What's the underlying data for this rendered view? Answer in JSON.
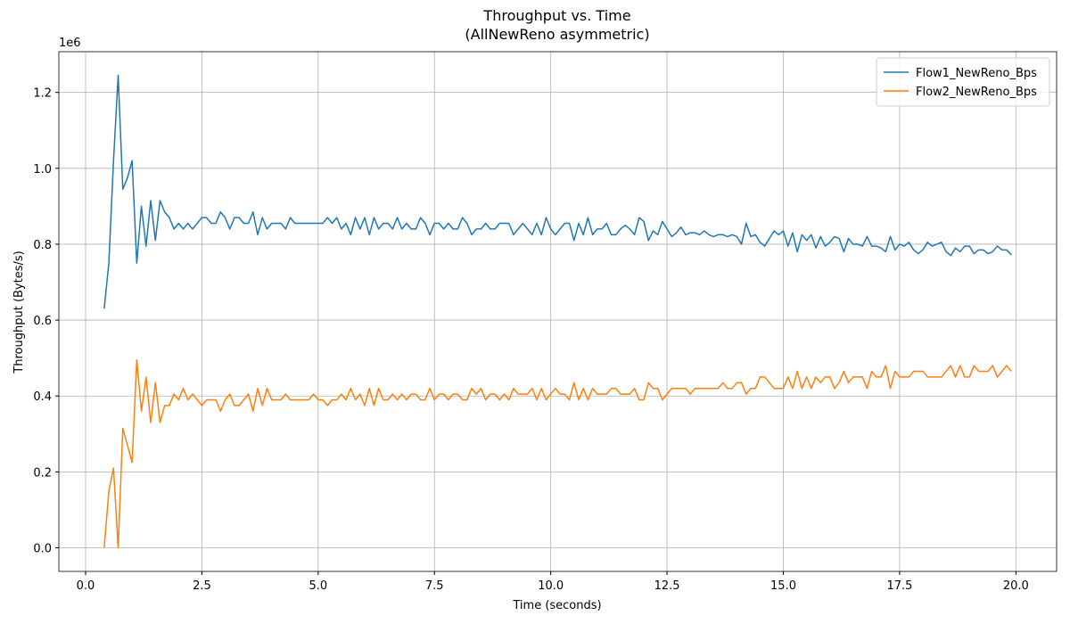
{
  "chart_data": {
    "type": "line",
    "title": "Throughput vs. Time",
    "subtitle": "(AllNewReno asymmetric)",
    "x_label": "Time (seconds)",
    "y_label": "Throughput (Bytes/s)",
    "y_offset_label": "1e6",
    "x": [
      0.4,
      0.5,
      0.6,
      0.7,
      0.8,
      0.9,
      1.0,
      1.1,
      1.2,
      1.3,
      1.4,
      1.5,
      1.6,
      1.7,
      1.8,
      1.9,
      2.0,
      2.1,
      2.2,
      2.3,
      2.4,
      2.5,
      2.6,
      2.7,
      2.8,
      2.9,
      3.0,
      3.1,
      3.2,
      3.3,
      3.4,
      3.5,
      3.6,
      3.7,
      3.8,
      3.9,
      4.0,
      4.1,
      4.2,
      4.3,
      4.4,
      4.5,
      4.6,
      4.7,
      4.8,
      4.9,
      5.0,
      5.1,
      5.2,
      5.3,
      5.4,
      5.5,
      5.6,
      5.7,
      5.8,
      5.9,
      6.0,
      6.1,
      6.2,
      6.3,
      6.4,
      6.5,
      6.6,
      6.7,
      6.8,
      6.9,
      7.0,
      7.1,
      7.2,
      7.3,
      7.4,
      7.5,
      7.6,
      7.7,
      7.8,
      7.9,
      8.0,
      8.1,
      8.2,
      8.3,
      8.4,
      8.5,
      8.6,
      8.7,
      8.8,
      8.9,
      9.0,
      9.1,
      9.2,
      9.3,
      9.4,
      9.5,
      9.6,
      9.7,
      9.8,
      9.9,
      10.0,
      10.1,
      10.2,
      10.3,
      10.4,
      10.5,
      10.6,
      10.7,
      10.8,
      10.9,
      11.0,
      11.1,
      11.2,
      11.3,
      11.4,
      11.5,
      11.6,
      11.7,
      11.8,
      11.9,
      12.0,
      12.1,
      12.2,
      12.3,
      12.4,
      12.5,
      12.6,
      12.7,
      12.8,
      12.9,
      13.0,
      13.1,
      13.2,
      13.3,
      13.4,
      13.5,
      13.6,
      13.7,
      13.8,
      13.9,
      14.0,
      14.1,
      14.2,
      14.3,
      14.4,
      14.5,
      14.6,
      14.7,
      14.8,
      14.9,
      15.0,
      15.1,
      15.2,
      15.3,
      15.4,
      15.5,
      15.6,
      15.7,
      15.8,
      15.9,
      16.0,
      16.1,
      16.2,
      16.3,
      16.4,
      16.5,
      16.6,
      16.7,
      16.8,
      16.9,
      17.0,
      17.1,
      17.2,
      17.3,
      17.4,
      17.5,
      17.6,
      17.7,
      17.8,
      17.9,
      18.0,
      18.1,
      18.2,
      18.3,
      18.4,
      18.5,
      18.6,
      18.7,
      18.8,
      18.9,
      19.0,
      19.1,
      19.2,
      19.3,
      19.4,
      19.5,
      19.6,
      19.7,
      19.8,
      19.9
    ],
    "series": [
      {
        "name": "Flow1_NewReno_Bps",
        "color": "#1f77b4",
        "values": [
          630000,
          750000,
          1020000,
          1245000,
          945000,
          975000,
          1020000,
          750000,
          900000,
          795000,
          915000,
          810000,
          915000,
          885000,
          870000,
          840000,
          855000,
          840000,
          855000,
          840000,
          855000,
          870000,
          870000,
          855000,
          855000,
          885000,
          870000,
          840000,
          870000,
          870000,
          855000,
          855000,
          885000,
          825000,
          870000,
          840000,
          855000,
          855000,
          855000,
          840000,
          870000,
          855000,
          855000,
          855000,
          855000,
          855000,
          855000,
          855000,
          870000,
          855000,
          870000,
          840000,
          855000,
          825000,
          870000,
          840000,
          870000,
          825000,
          870000,
          840000,
          855000,
          855000,
          840000,
          870000,
          840000,
          855000,
          840000,
          840000,
          870000,
          855000,
          825000,
          855000,
          855000,
          840000,
          855000,
          840000,
          840000,
          870000,
          855000,
          825000,
          840000,
          840000,
          855000,
          840000,
          840000,
          855000,
          855000,
          855000,
          825000,
          840000,
          855000,
          840000,
          825000,
          855000,
          825000,
          870000,
          840000,
          825000,
          840000,
          855000,
          855000,
          810000,
          855000,
          825000,
          870000,
          825000,
          840000,
          840000,
          855000,
          825000,
          825000,
          840000,
          850000,
          840000,
          825000,
          870000,
          860000,
          810000,
          835000,
          825000,
          860000,
          840000,
          820000,
          830000,
          845000,
          825000,
          830000,
          830000,
          825000,
          835000,
          825000,
          820000,
          825000,
          825000,
          820000,
          825000,
          820000,
          800000,
          855000,
          820000,
          825000,
          805000,
          795000,
          815000,
          835000,
          825000,
          835000,
          795000,
          830000,
          780000,
          825000,
          810000,
          825000,
          790000,
          820000,
          795000,
          805000,
          820000,
          815000,
          780000,
          815000,
          800000,
          800000,
          795000,
          820000,
          795000,
          795000,
          790000,
          780000,
          820000,
          785000,
          800000,
          795000,
          805000,
          785000,
          775000,
          785000,
          805000,
          795000,
          800000,
          805000,
          780000,
          770000,
          790000,
          780000,
          795000,
          795000,
          775000,
          785000,
          785000,
          775000,
          780000,
          795000,
          785000,
          785000,
          772000
        ]
      },
      {
        "name": "Flow2_NewReno_Bps",
        "color": "#ff7f0e",
        "values": [
          0,
          150000,
          210000,
          0,
          315000,
          270000,
          225000,
          495000,
          360000,
          450000,
          330000,
          435000,
          330000,
          375000,
          375000,
          405000,
          390000,
          420000,
          390000,
          405000,
          390000,
          375000,
          390000,
          390000,
          390000,
          360000,
          390000,
          405000,
          375000,
          375000,
          390000,
          405000,
          360000,
          420000,
          375000,
          420000,
          390000,
          390000,
          390000,
          405000,
          390000,
          390000,
          390000,
          390000,
          390000,
          405000,
          390000,
          390000,
          375000,
          390000,
          390000,
          405000,
          390000,
          420000,
          390000,
          405000,
          375000,
          420000,
          375000,
          420000,
          390000,
          390000,
          405000,
          390000,
          405000,
          390000,
          405000,
          405000,
          390000,
          390000,
          420000,
          390000,
          405000,
          405000,
          390000,
          405000,
          405000,
          390000,
          390000,
          420000,
          405000,
          420000,
          390000,
          405000,
          405000,
          390000,
          405000,
          390000,
          420000,
          405000,
          405000,
          405000,
          420000,
          390000,
          420000,
          390000,
          405000,
          420000,
          405000,
          405000,
          390000,
          435000,
          390000,
          420000,
          390000,
          420000,
          405000,
          405000,
          405000,
          420000,
          420000,
          405000,
          405000,
          405000,
          420000,
          390000,
          390000,
          435000,
          420000,
          420000,
          390000,
          405000,
          420000,
          420000,
          420000,
          420000,
          405000,
          420000,
          420000,
          420000,
          420000,
          420000,
          420000,
          435000,
          420000,
          420000,
          435000,
          435000,
          405000,
          420000,
          420000,
          450000,
          450000,
          435000,
          420000,
          420000,
          420000,
          450000,
          420000,
          465000,
          420000,
          450000,
          420000,
          450000,
          435000,
          450000,
          450000,
          420000,
          435000,
          465000,
          435000,
          450000,
          450000,
          450000,
          420000,
          465000,
          450000,
          450000,
          480000,
          420000,
          465000,
          450000,
          450000,
          450000,
          465000,
          465000,
          465000,
          450000,
          450000,
          450000,
          450000,
          465000,
          480000,
          450000,
          480000,
          450000,
          450000,
          480000,
          465000,
          465000,
          465000,
          480000,
          450000,
          465000,
          480000,
          465000
        ]
      }
    ],
    "xlim": [
      -0.575,
      20.875
    ],
    "xticks": [
      {
        "value": 0,
        "label": "0.0"
      },
      2.5,
      {
        "value": 5,
        "label": "5.0"
      },
      7.5,
      {
        "value": 10,
        "label": "10.0"
      },
      12.5,
      {
        "value": 15,
        "label": "15.0"
      },
      17.5,
      {
        "value": 20,
        "label": "20.0"
      }
    ],
    "ylim": [
      -62250,
      1307250
    ],
    "yticks": [
      {
        "value": 0,
        "label": "0.0"
      },
      {
        "value": 200000,
        "label": "0.2"
      },
      {
        "value": 400000,
        "label": "0.4"
      },
      {
        "value": 600000,
        "label": "0.6"
      },
      {
        "value": 800000,
        "label": "0.8"
      },
      {
        "value": 1000000,
        "label": "1.0"
      },
      {
        "value": 1200000,
        "label": "1.2"
      }
    ],
    "grid": true,
    "legend": "upper right"
  }
}
